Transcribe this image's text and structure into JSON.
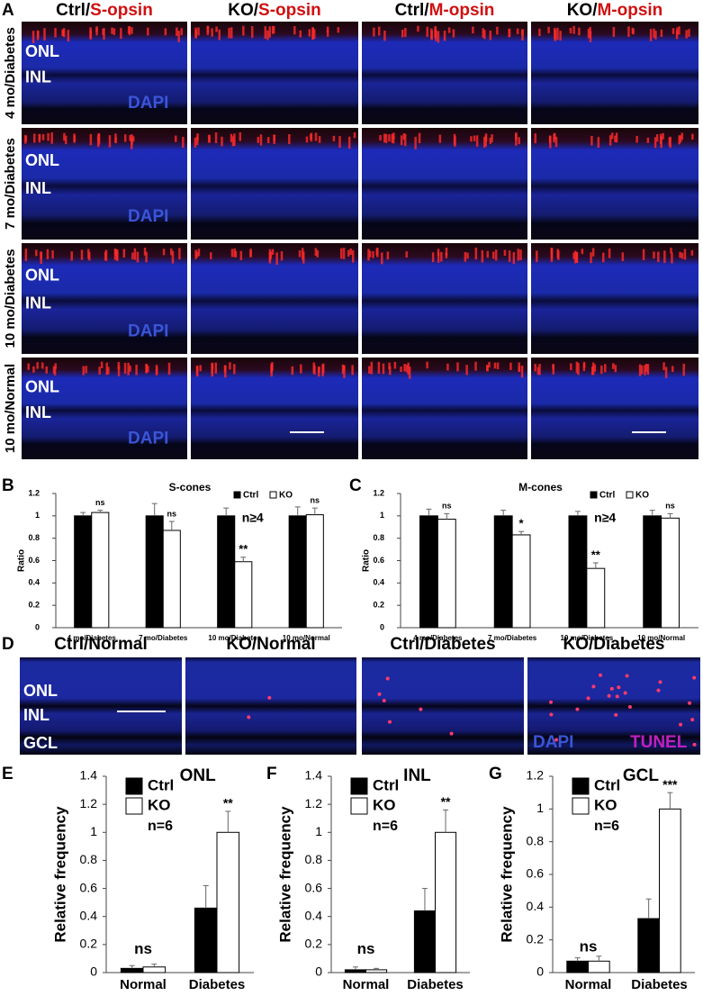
{
  "panel_letters": [
    "A",
    "B",
    "C",
    "D",
    "E",
    "F",
    "G"
  ],
  "panel_a": {
    "columns": [
      {
        "prefix": "Ctrl/",
        "marker": "S-opsin"
      },
      {
        "prefix": "KO/",
        "marker": "S-opsin"
      },
      {
        "prefix": "Ctrl/",
        "marker": "M-opsin"
      },
      {
        "prefix": "KO/",
        "marker": "M-opsin"
      }
    ],
    "rows": [
      "4 mo/Diabetes",
      "7 mo/Diabetes",
      "10 mo/Diabetes",
      "10 mo/Normal"
    ],
    "layers": [
      "ONL",
      "INL"
    ],
    "stain": "DAPI"
  },
  "panel_d": {
    "columns": [
      "Ctrl/Normal",
      "KO/Normal",
      "Ctrl/Diabetes",
      "KO/Diabetes"
    ],
    "layers": [
      "ONL",
      "INL",
      "GCL"
    ],
    "stains": [
      "DAPI",
      "TUNEL"
    ]
  },
  "chart_data": [
    {
      "type": "bar",
      "title": "S-cones",
      "y_label": "Ratio",
      "categories": [
        "4 mo/Diabetes",
        "7 mo/Diabetes",
        "10 mo/Diabetes",
        "10 mo/Normal"
      ],
      "series": [
        {
          "name": "Ctrl",
          "color": "#000000",
          "values": [
            1,
            1,
            1,
            1
          ],
          "errors": [
            0.03,
            0.11,
            0.07,
            0.08
          ]
        },
        {
          "name": "KO",
          "color": "#ffffff",
          "values": [
            1.03,
            0.87,
            0.59,
            1.01
          ],
          "errors": [
            0.02,
            0.08,
            0.04,
            0.06
          ]
        }
      ],
      "annotations": [
        "ns",
        "ns",
        "**",
        "ns"
      ],
      "note": "n≥4",
      "ylim": [
        0,
        1.2
      ],
      "yticks": [
        0,
        0.2,
        0.4,
        0.6,
        0.8,
        1,
        1.2
      ],
      "legend": "top-right"
    },
    {
      "type": "bar",
      "title": "M-cones",
      "y_label": "Ratio",
      "categories": [
        "4 mo/Diabetes",
        "7 mo/Diabetes",
        "10 mo/Diabetes",
        "10 mo/Normal"
      ],
      "series": [
        {
          "name": "Ctrl",
          "color": "#000000",
          "values": [
            1,
            1,
            1,
            1
          ],
          "errors": [
            0.06,
            0.05,
            0.04,
            0.05
          ]
        },
        {
          "name": "KO",
          "color": "#ffffff",
          "values": [
            0.97,
            0.83,
            0.53,
            0.98
          ],
          "errors": [
            0.05,
            0.03,
            0.05,
            0.04
          ]
        }
      ],
      "annotations": [
        "ns",
        "*",
        "**",
        "ns"
      ],
      "note": "n≥4",
      "ylim": [
        0,
        1.2
      ],
      "yticks": [
        0,
        0.2,
        0.4,
        0.6,
        0.8,
        1,
        1.2
      ],
      "legend": "top-right"
    },
    {
      "type": "bar",
      "title": "ONL",
      "y_label": "Relative frequency",
      "categories": [
        "Normal",
        "Diabetes"
      ],
      "series": [
        {
          "name": "Ctrl",
          "color": "#000000",
          "values": [
            0.03,
            0.46
          ],
          "errors": [
            0.02,
            0.16
          ]
        },
        {
          "name": "KO",
          "color": "#ffffff",
          "values": [
            0.04,
            1
          ],
          "errors": [
            0.02,
            0.15
          ]
        }
      ],
      "annotations": [
        "ns",
        "**"
      ],
      "note": "n=6",
      "ylim": [
        0,
        1.4
      ],
      "yticks": [
        0,
        0.2,
        0.4,
        0.6,
        0.8,
        1,
        1.2,
        1.4
      ],
      "legend": "top-left"
    },
    {
      "type": "bar",
      "title": "INL",
      "y_label": "Relative frequency",
      "categories": [
        "Normal",
        "Diabetes"
      ],
      "series": [
        {
          "name": "Ctrl",
          "color": "#000000",
          "values": [
            0.02,
            0.44
          ],
          "errors": [
            0.02,
            0.16
          ]
        },
        {
          "name": "KO",
          "color": "#ffffff",
          "values": [
            0.02,
            1
          ],
          "errors": [
            0.01,
            0.16
          ]
        }
      ],
      "annotations": [
        "ns",
        "**"
      ],
      "note": "n=6",
      "ylim": [
        0,
        1.4
      ],
      "yticks": [
        0,
        0.2,
        0.4,
        0.6,
        0.8,
        1,
        1.2,
        1.4
      ],
      "legend": "top-left"
    },
    {
      "type": "bar",
      "title": "GCL",
      "y_label": "Relative frequency",
      "categories": [
        "Normal",
        "Diabetes"
      ],
      "series": [
        {
          "name": "Ctrl",
          "color": "#000000",
          "values": [
            0.07,
            0.33
          ],
          "errors": [
            0.02,
            0.12
          ]
        },
        {
          "name": "KO",
          "color": "#ffffff",
          "values": [
            0.07,
            1
          ],
          "errors": [
            0.03,
            0.1
          ]
        }
      ],
      "annotations": [
        "ns",
        "***"
      ],
      "note": "n=6",
      "ylim": [
        0,
        1.2
      ],
      "yticks": [
        0,
        0.2,
        0.4,
        0.6,
        0.8,
        1,
        1.2
      ],
      "legend": "top-left"
    }
  ]
}
